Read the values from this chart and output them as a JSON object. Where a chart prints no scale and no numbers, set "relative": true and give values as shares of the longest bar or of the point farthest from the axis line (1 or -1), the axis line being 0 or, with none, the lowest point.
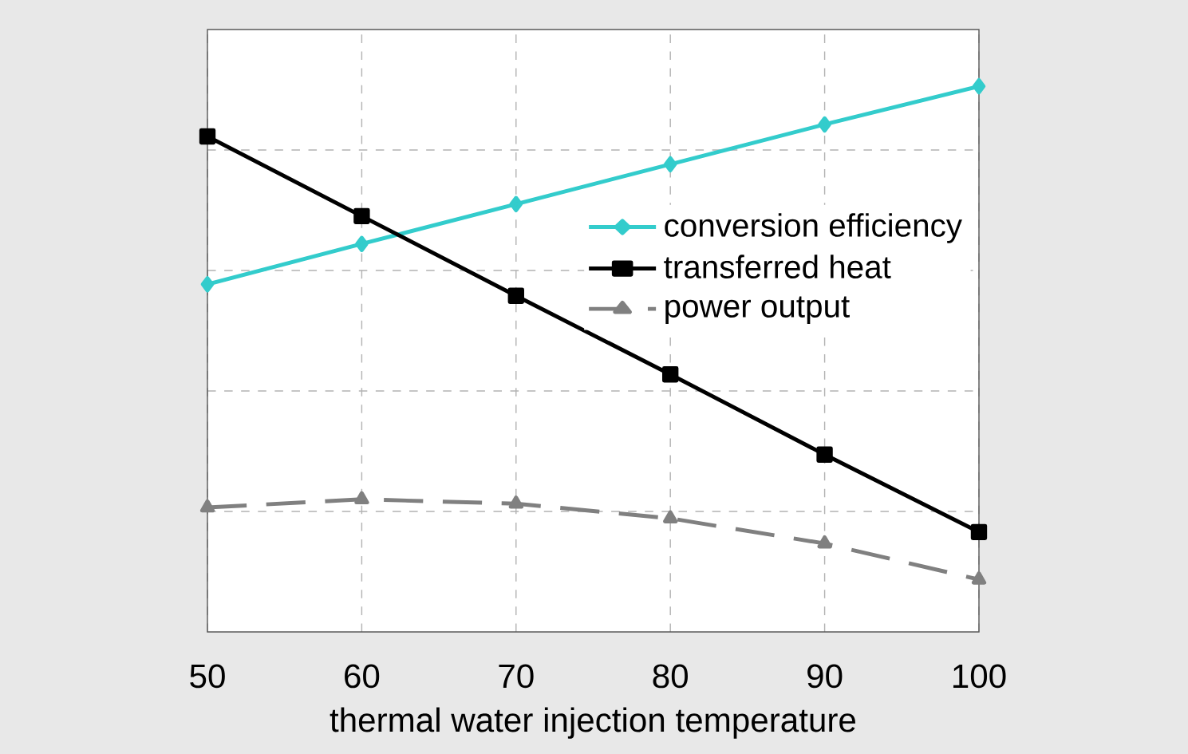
{
  "chart_data": {
    "type": "line",
    "xlabel": "thermal water injection temperature",
    "x": [
      50,
      60,
      70,
      80,
      90,
      100
    ],
    "xlim": [
      50,
      100
    ],
    "xticks": [
      50,
      60,
      70,
      80,
      90,
      100
    ],
    "relative": true,
    "grid": true,
    "legend": "top right",
    "series": [
      {
        "name": "conversion efficiency",
        "color": "#33cccc",
        "marker": "diamond",
        "line_style": "solid",
        "values": [
          0.637,
          0.711,
          0.784,
          0.857,
          0.93,
          1
        ]
      },
      {
        "name": "transferred heat",
        "color": "#000000",
        "marker": "square",
        "line_style": "solid",
        "values": [
          0.908,
          0.762,
          0.616,
          0.472,
          0.325,
          0.183
        ]
      },
      {
        "name": "power output",
        "color": "#808080",
        "marker": "triangle",
        "line_style": "dashed",
        "values": [
          0.228,
          0.243,
          0.235,
          0.208,
          0.162,
          0.096
        ]
      }
    ]
  }
}
